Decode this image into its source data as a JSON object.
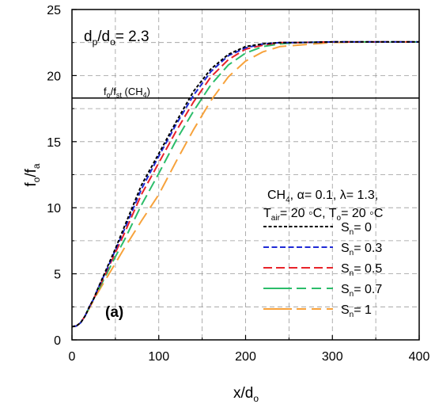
{
  "chart_data": {
    "type": "line",
    "xlabel": "x/d",
    "xlabel_sub": "o",
    "ylabel_main": "f",
    "ylabel_sub1": "o",
    "ylabel_mid": "/f",
    "ylabel_sub2": "a",
    "xlim": [
      0,
      400
    ],
    "ylim": [
      0,
      25
    ],
    "x_ticks": [
      0,
      100,
      200,
      300,
      400
    ],
    "y_ticks": [
      0,
      5,
      10,
      15,
      20,
      25
    ],
    "x_tick_labels": [
      "0",
      "100",
      "200",
      "300",
      "400"
    ],
    "y_tick_labels": [
      "0",
      "5",
      "10",
      "15",
      "20",
      "25"
    ],
    "grid": true,
    "legend_position": "right",
    "annotations": {
      "ratio": {
        "d": "d",
        "p": "p",
        "slash": "/d",
        "o": "o",
        "value": "= 2.3"
      },
      "panel_label": "(a)",
      "ref_line": {
        "y": 18.3,
        "f1": "f",
        "s1": "o",
        "mid": "/f",
        "s2": "st",
        "rest": " (CH",
        "s3": "4",
        "end": ")"
      },
      "conditions1": {
        "a": "CH",
        "sub": "4",
        "b": ", α= 0.1, λ= 1.3,"
      },
      "conditions2": {
        "a": "T",
        "sub1": "air",
        "b": "= 20 ◦C, T",
        "sub2": "o",
        "c": "= 20 ◦C"
      }
    },
    "series": [
      {
        "name": "0",
        "color": "#000000",
        "dash": "short",
        "x": [
          0,
          5,
          10,
          15,
          20,
          25,
          30,
          40,
          50,
          60,
          80,
          100,
          120,
          140,
          160,
          180,
          200,
          220,
          240,
          260,
          300,
          350,
          400
        ],
        "y": [
          1.0,
          1.05,
          1.3,
          1.8,
          2.5,
          3.1,
          3.9,
          5.4,
          6.9,
          8.5,
          11.7,
          14.1,
          16.5,
          18.8,
          20.5,
          21.6,
          22.2,
          22.4,
          22.5,
          22.5,
          22.55,
          22.55,
          22.55
        ]
      },
      {
        "name": "0.3",
        "color": "#1f2ad6",
        "dash": "medium",
        "x": [
          0,
          5,
          10,
          15,
          20,
          25,
          30,
          40,
          50,
          60,
          80,
          100,
          120,
          140,
          160,
          180,
          200,
          220,
          240,
          260,
          300,
          350,
          400
        ],
        "y": [
          1.0,
          1.05,
          1.3,
          1.8,
          2.5,
          3.1,
          3.9,
          5.3,
          6.8,
          8.3,
          11.4,
          13.9,
          16.3,
          18.5,
          20.3,
          21.5,
          22.1,
          22.4,
          22.5,
          22.5,
          22.55,
          22.55,
          22.55
        ]
      },
      {
        "name": "0.5",
        "color": "#e8232a",
        "dash": "long",
        "x": [
          0,
          5,
          10,
          15,
          20,
          25,
          30,
          40,
          50,
          60,
          80,
          100,
          120,
          140,
          160,
          180,
          200,
          220,
          240,
          260,
          300,
          350,
          400
        ],
        "y": [
          1.0,
          1.05,
          1.3,
          1.8,
          2.5,
          3.1,
          3.8,
          5.2,
          6.6,
          8.0,
          11.0,
          13.4,
          15.8,
          18.0,
          19.9,
          21.2,
          22.0,
          22.3,
          22.5,
          22.5,
          22.55,
          22.55,
          22.55
        ]
      },
      {
        "name": "0.7",
        "color": "#2bbd6a",
        "dash": "solid-long",
        "x": [
          0,
          5,
          10,
          15,
          20,
          25,
          30,
          40,
          50,
          60,
          80,
          100,
          120,
          140,
          160,
          180,
          200,
          220,
          240,
          260,
          300,
          350,
          400
        ],
        "y": [
          1.0,
          1.05,
          1.3,
          1.8,
          2.5,
          3.1,
          3.7,
          5.0,
          6.3,
          7.5,
          10.2,
          12.6,
          15.1,
          17.3,
          19.3,
          20.8,
          21.7,
          22.2,
          22.4,
          22.5,
          22.55,
          22.55,
          22.55
        ]
      },
      {
        "name": "1",
        "color": "#f7a23b",
        "dash": "solid-long2",
        "x": [
          0,
          5,
          10,
          15,
          20,
          25,
          30,
          40,
          50,
          60,
          80,
          100,
          120,
          140,
          160,
          180,
          200,
          220,
          240,
          260,
          300,
          350,
          400
        ],
        "y": [
          1.0,
          1.05,
          1.3,
          1.8,
          2.4,
          3.0,
          3.6,
          4.7,
          5.8,
          6.9,
          9.0,
          11.0,
          13.5,
          15.9,
          18.1,
          19.9,
          21.1,
          21.8,
          22.2,
          22.3,
          22.5,
          22.55,
          22.55
        ]
      }
    ],
    "legend_prefix": "S",
    "legend_prefix_sub": "n",
    "legend_eq": "= "
  }
}
